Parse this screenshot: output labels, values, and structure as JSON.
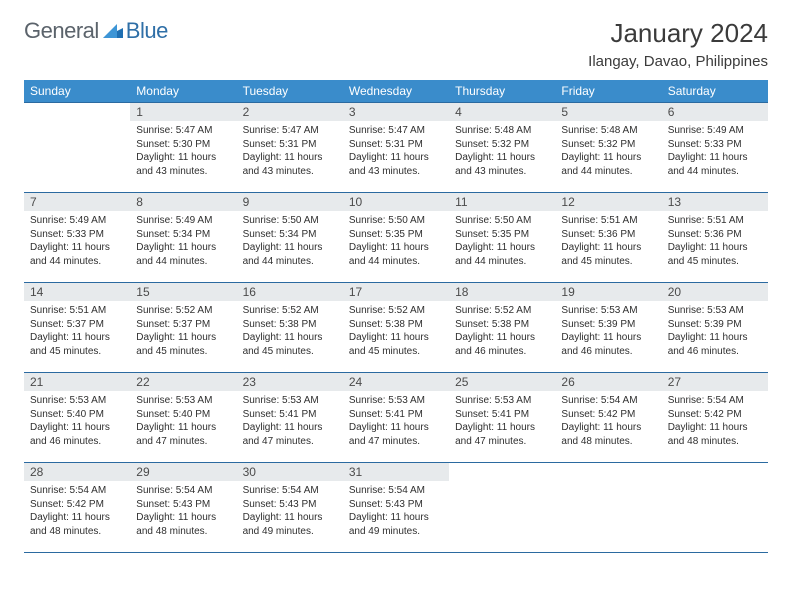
{
  "logo": {
    "text1": "General",
    "text2": "Blue"
  },
  "title": "January 2024",
  "location": "Ilangay, Davao, Philippines",
  "colors": {
    "header_bg": "#3a8ccb",
    "header_text": "#ffffff",
    "daynum_bg": "#e7eaec",
    "border": "#2b6aa0",
    "logo_gray": "#5b636b",
    "logo_blue": "#2f6fa7",
    "text": "#3b3b3b"
  },
  "weekdays": [
    "Sunday",
    "Monday",
    "Tuesday",
    "Wednesday",
    "Thursday",
    "Friday",
    "Saturday"
  ],
  "start_offset": 1,
  "days": [
    {
      "n": "1",
      "sr": "Sunrise: 5:47 AM",
      "ss": "Sunset: 5:30 PM",
      "dl": "Daylight: 11 hours and 43 minutes."
    },
    {
      "n": "2",
      "sr": "Sunrise: 5:47 AM",
      "ss": "Sunset: 5:31 PM",
      "dl": "Daylight: 11 hours and 43 minutes."
    },
    {
      "n": "3",
      "sr": "Sunrise: 5:47 AM",
      "ss": "Sunset: 5:31 PM",
      "dl": "Daylight: 11 hours and 43 minutes."
    },
    {
      "n": "4",
      "sr": "Sunrise: 5:48 AM",
      "ss": "Sunset: 5:32 PM",
      "dl": "Daylight: 11 hours and 43 minutes."
    },
    {
      "n": "5",
      "sr": "Sunrise: 5:48 AM",
      "ss": "Sunset: 5:32 PM",
      "dl": "Daylight: 11 hours and 44 minutes."
    },
    {
      "n": "6",
      "sr": "Sunrise: 5:49 AM",
      "ss": "Sunset: 5:33 PM",
      "dl": "Daylight: 11 hours and 44 minutes."
    },
    {
      "n": "7",
      "sr": "Sunrise: 5:49 AM",
      "ss": "Sunset: 5:33 PM",
      "dl": "Daylight: 11 hours and 44 minutes."
    },
    {
      "n": "8",
      "sr": "Sunrise: 5:49 AM",
      "ss": "Sunset: 5:34 PM",
      "dl": "Daylight: 11 hours and 44 minutes."
    },
    {
      "n": "9",
      "sr": "Sunrise: 5:50 AM",
      "ss": "Sunset: 5:34 PM",
      "dl": "Daylight: 11 hours and 44 minutes."
    },
    {
      "n": "10",
      "sr": "Sunrise: 5:50 AM",
      "ss": "Sunset: 5:35 PM",
      "dl": "Daylight: 11 hours and 44 minutes."
    },
    {
      "n": "11",
      "sr": "Sunrise: 5:50 AM",
      "ss": "Sunset: 5:35 PM",
      "dl": "Daylight: 11 hours and 44 minutes."
    },
    {
      "n": "12",
      "sr": "Sunrise: 5:51 AM",
      "ss": "Sunset: 5:36 PM",
      "dl": "Daylight: 11 hours and 45 minutes."
    },
    {
      "n": "13",
      "sr": "Sunrise: 5:51 AM",
      "ss": "Sunset: 5:36 PM",
      "dl": "Daylight: 11 hours and 45 minutes."
    },
    {
      "n": "14",
      "sr": "Sunrise: 5:51 AM",
      "ss": "Sunset: 5:37 PM",
      "dl": "Daylight: 11 hours and 45 minutes."
    },
    {
      "n": "15",
      "sr": "Sunrise: 5:52 AM",
      "ss": "Sunset: 5:37 PM",
      "dl": "Daylight: 11 hours and 45 minutes."
    },
    {
      "n": "16",
      "sr": "Sunrise: 5:52 AM",
      "ss": "Sunset: 5:38 PM",
      "dl": "Daylight: 11 hours and 45 minutes."
    },
    {
      "n": "17",
      "sr": "Sunrise: 5:52 AM",
      "ss": "Sunset: 5:38 PM",
      "dl": "Daylight: 11 hours and 45 minutes."
    },
    {
      "n": "18",
      "sr": "Sunrise: 5:52 AM",
      "ss": "Sunset: 5:38 PM",
      "dl": "Daylight: 11 hours and 46 minutes."
    },
    {
      "n": "19",
      "sr": "Sunrise: 5:53 AM",
      "ss": "Sunset: 5:39 PM",
      "dl": "Daylight: 11 hours and 46 minutes."
    },
    {
      "n": "20",
      "sr": "Sunrise: 5:53 AM",
      "ss": "Sunset: 5:39 PM",
      "dl": "Daylight: 11 hours and 46 minutes."
    },
    {
      "n": "21",
      "sr": "Sunrise: 5:53 AM",
      "ss": "Sunset: 5:40 PM",
      "dl": "Daylight: 11 hours and 46 minutes."
    },
    {
      "n": "22",
      "sr": "Sunrise: 5:53 AM",
      "ss": "Sunset: 5:40 PM",
      "dl": "Daylight: 11 hours and 47 minutes."
    },
    {
      "n": "23",
      "sr": "Sunrise: 5:53 AM",
      "ss": "Sunset: 5:41 PM",
      "dl": "Daylight: 11 hours and 47 minutes."
    },
    {
      "n": "24",
      "sr": "Sunrise: 5:53 AM",
      "ss": "Sunset: 5:41 PM",
      "dl": "Daylight: 11 hours and 47 minutes."
    },
    {
      "n": "25",
      "sr": "Sunrise: 5:53 AM",
      "ss": "Sunset: 5:41 PM",
      "dl": "Daylight: 11 hours and 47 minutes."
    },
    {
      "n": "26",
      "sr": "Sunrise: 5:54 AM",
      "ss": "Sunset: 5:42 PM",
      "dl": "Daylight: 11 hours and 48 minutes."
    },
    {
      "n": "27",
      "sr": "Sunrise: 5:54 AM",
      "ss": "Sunset: 5:42 PM",
      "dl": "Daylight: 11 hours and 48 minutes."
    },
    {
      "n": "28",
      "sr": "Sunrise: 5:54 AM",
      "ss": "Sunset: 5:42 PM",
      "dl": "Daylight: 11 hours and 48 minutes."
    },
    {
      "n": "29",
      "sr": "Sunrise: 5:54 AM",
      "ss": "Sunset: 5:43 PM",
      "dl": "Daylight: 11 hours and 48 minutes."
    },
    {
      "n": "30",
      "sr": "Sunrise: 5:54 AM",
      "ss": "Sunset: 5:43 PM",
      "dl": "Daylight: 11 hours and 49 minutes."
    },
    {
      "n": "31",
      "sr": "Sunrise: 5:54 AM",
      "ss": "Sunset: 5:43 PM",
      "dl": "Daylight: 11 hours and 49 minutes."
    }
  ]
}
